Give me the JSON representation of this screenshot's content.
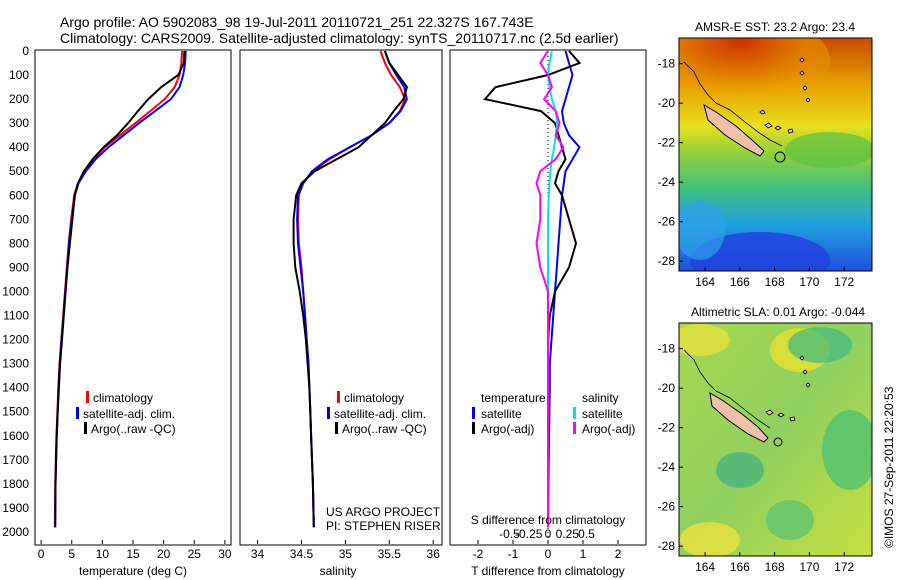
{
  "header": {
    "line1": "Argo profile: AO 5902083_98 19-Jul-2011 20110721_251 22.327S 167.743E",
    "line2": "Climatology: CARS2009. Satellite-adjusted climatology: synTS_20110717.nc (2.5d earlier)"
  },
  "depth_ticks": [
    "0",
    "100",
    "200",
    "300",
    "400",
    "500",
    "600",
    "700",
    "800",
    "900",
    "1000",
    "1100",
    "1200",
    "1300",
    "1400",
    "1500",
    "1600",
    "1700",
    "1800",
    "1900",
    "2000"
  ],
  "colors": {
    "climatology": "#ff0000",
    "satellite": "#0000ff",
    "argo": "#000000",
    "sat_salinity": "#00e5e5",
    "argo_salinity": "#ff00ff"
  },
  "temperature_panel": {
    "xlabel": "temperature (deg C)",
    "xticks": [
      "0",
      "5",
      "10",
      "15",
      "20",
      "25",
      "30"
    ],
    "legend": [
      "climatology",
      "satellite-adj. clim.",
      "Argo(..raw -QC)"
    ]
  },
  "salinity_panel": {
    "xlabel": "salinity",
    "xticks": [
      "34",
      "34.5",
      "35",
      "35.5",
      "36"
    ],
    "legend": [
      "climatology",
      "satellite-adj. clim.",
      "Argo(..raw -QC)"
    ],
    "project_line1": "US ARGO PROJECT",
    "project_line2": "PI: STEPHEN RISER"
  },
  "difference_panel": {
    "xlabel_t": "T difference from climatology",
    "xlabel_s": "S difference from climatology",
    "t_ticks": [
      "-2",
      "-1",
      "0",
      "1",
      "2"
    ],
    "s_ticks": [
      "-0.5",
      "-0.25",
      "0",
      "0.25",
      "0.5"
    ],
    "legend_temp_title": "temperature",
    "legend_sal_title": "salinity",
    "legend_temp": [
      "satellite",
      "Argo(-adj)"
    ],
    "legend_sal": [
      "satellite",
      "Argo(-adj)"
    ]
  },
  "sst_map": {
    "title": "AMSR-E SST: 23.2 Argo: 23.4",
    "xticks": [
      "164",
      "166",
      "168",
      "170",
      "172"
    ],
    "yticks": [
      "-18",
      "-20",
      "-22",
      "-24",
      "-26",
      "-28"
    ]
  },
  "sla_map": {
    "title": "Altimetric SLA: 0.01 Argo: -0.044",
    "xticks": [
      "164",
      "166",
      "168",
      "170",
      "172"
    ],
    "yticks": [
      "-18",
      "-20",
      "-22",
      "-24",
      "-26",
      "-28"
    ]
  },
  "footer": {
    "credit": "©IMOS 27-Sep-2011 22:20:53"
  },
  "chart_data": [
    {
      "type": "line",
      "xlabel": "temperature (deg C)",
      "xlim": [
        -1,
        31
      ],
      "ylim": [
        2050,
        0
      ],
      "y_reversed": true,
      "series": [
        {
          "name": "climatology",
          "x": [
            23.0,
            22.9,
            22.6,
            21.8,
            20.2,
            17.8,
            15.4,
            12.9,
            10.4,
            8.5,
            7.1,
            6.0,
            5.4,
            4.9,
            4.5,
            4.2,
            3.9,
            3.6,
            3.3,
            3.0,
            2.8,
            2.65,
            2.5,
            2.4,
            2.3,
            2.25
          ],
          "depth": [
            0,
            50,
            100,
            150,
            200,
            250,
            300,
            350,
            400,
            450,
            500,
            550,
            600,
            700,
            800,
            900,
            1000,
            1100,
            1200,
            1300,
            1400,
            1500,
            1600,
            1700,
            1800,
            1980
          ]
        },
        {
          "name": "satellite-adj. clim.",
          "x": [
            23.6,
            23.5,
            23.2,
            22.6,
            21.2,
            18.6,
            16.0,
            13.5,
            11.0,
            8.9,
            7.3,
            6.1,
            5.5,
            5.0,
            4.55,
            4.25,
            3.95,
            3.65,
            3.35,
            3.05,
            2.85,
            2.7,
            2.55,
            2.45,
            2.35,
            2.3
          ],
          "depth": [
            0,
            50,
            100,
            150,
            200,
            250,
            300,
            350,
            400,
            450,
            500,
            550,
            600,
            700,
            800,
            900,
            1000,
            1100,
            1200,
            1300,
            1400,
            1500,
            1600,
            1700,
            1800,
            1980
          ]
        },
        {
          "name": "Argo(..raw -QC)",
          "x": [
            23.4,
            23.3,
            22.4,
            19.6,
            17.5,
            15.8,
            14.2,
            12.4,
            10.2,
            8.4,
            7.0,
            6.0,
            5.5,
            5.1,
            4.7,
            4.3,
            4.0,
            3.7,
            3.4,
            3.1,
            2.9,
            2.7,
            2.55,
            2.45,
            2.35,
            2.3
          ],
          "depth": [
            0,
            50,
            100,
            150,
            200,
            250,
            300,
            350,
            400,
            450,
            500,
            550,
            600,
            700,
            800,
            900,
            1000,
            1100,
            1200,
            1300,
            1400,
            1500,
            1600,
            1700,
            1800,
            1980
          ]
        }
      ]
    },
    {
      "type": "line",
      "xlabel": "salinity",
      "xlim": [
        33.8,
        36.1
      ],
      "ylim": [
        2050,
        0
      ],
      "y_reversed": true,
      "series": [
        {
          "name": "climatology",
          "x": [
            35.4,
            35.45,
            35.52,
            35.62,
            35.68,
            35.62,
            35.5,
            35.3,
            35.05,
            34.82,
            34.63,
            34.52,
            34.47,
            34.46,
            34.47,
            34.5,
            34.52,
            34.54,
            34.56,
            34.58,
            34.59,
            34.6,
            34.61,
            34.62,
            34.63,
            34.64
          ],
          "depth": [
            0,
            50,
            100,
            150,
            200,
            250,
            300,
            350,
            400,
            450,
            500,
            550,
            600,
            700,
            800,
            900,
            1000,
            1100,
            1200,
            1300,
            1400,
            1500,
            1600,
            1700,
            1800,
            1980
          ]
        },
        {
          "name": "satellite-adj. clim.",
          "x": [
            35.45,
            35.5,
            35.58,
            35.67,
            35.7,
            35.63,
            35.5,
            35.3,
            35.05,
            34.8,
            34.62,
            34.52,
            34.46,
            34.45,
            34.46,
            34.49,
            34.52,
            34.54,
            34.56,
            34.58,
            34.59,
            34.6,
            34.61,
            34.62,
            34.63,
            34.64
          ],
          "depth": [
            0,
            50,
            100,
            150,
            200,
            250,
            300,
            350,
            400,
            450,
            500,
            550,
            600,
            700,
            800,
            900,
            1000,
            1100,
            1200,
            1300,
            1400,
            1500,
            1600,
            1700,
            1800,
            1980
          ]
        },
        {
          "name": "Argo(..raw -QC)",
          "x": [
            35.45,
            35.5,
            35.6,
            35.7,
            35.66,
            35.55,
            35.45,
            35.3,
            35.15,
            34.9,
            34.65,
            34.5,
            34.44,
            34.41,
            34.41,
            34.43,
            34.48,
            34.52,
            34.55,
            34.57,
            34.59,
            34.6,
            34.61,
            34.62,
            34.63,
            34.64
          ],
          "depth": [
            0,
            50,
            100,
            150,
            200,
            250,
            300,
            350,
            400,
            450,
            500,
            550,
            600,
            700,
            800,
            900,
            1000,
            1100,
            1200,
            1300,
            1400,
            1500,
            1600,
            1700,
            1800,
            1980
          ]
        }
      ]
    },
    {
      "type": "line",
      "xlabel": "T difference from climatology",
      "xlim": [
        -2.8,
        2.8
      ],
      "ylim": [
        2050,
        0
      ],
      "y_reversed": true,
      "series": [
        {
          "name": "temperature satellite",
          "x": [
            0.5,
            0.6,
            0.7,
            0.6,
            0.5,
            0.4,
            0.45,
            0.6,
            0.9,
            0.7,
            0.5,
            0.45,
            0.4,
            0.35,
            0.3,
            0.25,
            0.2,
            0.15,
            0.1,
            0.05,
            0.05,
            0.04,
            0.03,
            0.02,
            0.01,
            0.0
          ],
          "depth": [
            0,
            50,
            100,
            150,
            200,
            250,
            300,
            350,
            400,
            450,
            500,
            550,
            600,
            700,
            800,
            900,
            1000,
            1100,
            1200,
            1300,
            1400,
            1500,
            1600,
            1700,
            1800,
            1980
          ]
        },
        {
          "name": "temperature Argo(-adj)",
          "x": [
            0.6,
            0.9,
            0.0,
            -1.5,
            -1.8,
            -0.2,
            0.2,
            0.3,
            0.4,
            0.5,
            0.3,
            0.2,
            0.4,
            0.6,
            0.8,
            0.6,
            0.2,
            0.05,
            0.0,
            0.0,
            0.0,
            0.0,
            0.0,
            0.0,
            0.0,
            0.0
          ],
          "depth": [
            0,
            50,
            100,
            150,
            200,
            250,
            300,
            350,
            400,
            450,
            500,
            550,
            600,
            700,
            800,
            900,
            1000,
            1100,
            1200,
            1300,
            1400,
            1500,
            1600,
            1700,
            1800,
            1980
          ]
        },
        {
          "name": "salinity satellite",
          "x": [
            0.05,
            0.02,
            0.0,
            0.02,
            0.05,
            0.1,
            0.12,
            0.1,
            0.08,
            0.05,
            0.03,
            0.02,
            0.01,
            0.0,
            0.0,
            0.0,
            0.0,
            0.0,
            0.0,
            0.0,
            0.0,
            0.0,
            0.0,
            0.0,
            0.0,
            0.0
          ],
          "depth": [
            0,
            50,
            100,
            150,
            200,
            250,
            300,
            350,
            400,
            450,
            500,
            550,
            600,
            700,
            800,
            900,
            1000,
            1100,
            1200,
            1300,
            1400,
            1500,
            1600,
            1700,
            1800,
            1980
          ]
        },
        {
          "name": "salinity Argo(-adj)",
          "x": [
            0.0,
            -0.1,
            0.0,
            0.05,
            -0.05,
            0.1,
            0.15,
            0.1,
            0.2,
            0.1,
            -0.1,
            -0.15,
            -0.1,
            -0.1,
            -0.15,
            -0.1,
            0.0,
            0.0,
            0.0,
            0.0,
            0.0,
            0.0,
            0.0,
            0.0,
            0.0,
            0.0
          ],
          "depth": [
            0,
            50,
            100,
            150,
            200,
            250,
            300,
            350,
            400,
            450,
            500,
            550,
            600,
            700,
            800,
            900,
            1000,
            1100,
            1200,
            1300,
            1400,
            1500,
            1600,
            1700,
            1800,
            1980
          ]
        }
      ]
    },
    {
      "type": "heatmap",
      "title": "AMSR-E SST: 23.2 Argo: 23.4",
      "xlim": [
        162.5,
        173.6
      ],
      "ylim": [
        -28.5,
        -16.7
      ],
      "argo_position": [
        167.743,
        -22.327
      ]
    },
    {
      "type": "heatmap",
      "title": "Altimetric SLA: 0.01 Argo: -0.044",
      "xlim": [
        162.5,
        173.6
      ],
      "ylim": [
        -28.5,
        -16.7
      ],
      "argo_position": [
        167.743,
        -22.327
      ]
    }
  ]
}
